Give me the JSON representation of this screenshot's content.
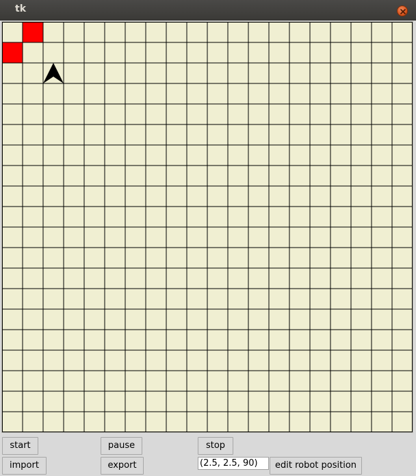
{
  "window": {
    "title": "tk",
    "close_icon": "close-icon",
    "titlebar_color": "#3c3b37",
    "close_color": "#e05a1e"
  },
  "grid": {
    "rows": 20,
    "cols": 20,
    "background": "#f0efd2",
    "line_color": "#000000",
    "filled_cells": [
      {
        "row": 0,
        "col": 1,
        "color": "#ff0000"
      },
      {
        "row": 1,
        "col": 0,
        "color": "#ff0000"
      }
    ],
    "robot": {
      "icon": "robot-arrow-icon",
      "row": 2,
      "col": 2,
      "heading_deg": 90,
      "color": "#000000"
    }
  },
  "controls": {
    "start_label": "start",
    "pause_label": "pause",
    "stop_label": "stop",
    "import_label": "import",
    "export_label": "export",
    "position_value": "(2.5, 2.5, 90)",
    "edit_position_label": "edit robot position"
  }
}
